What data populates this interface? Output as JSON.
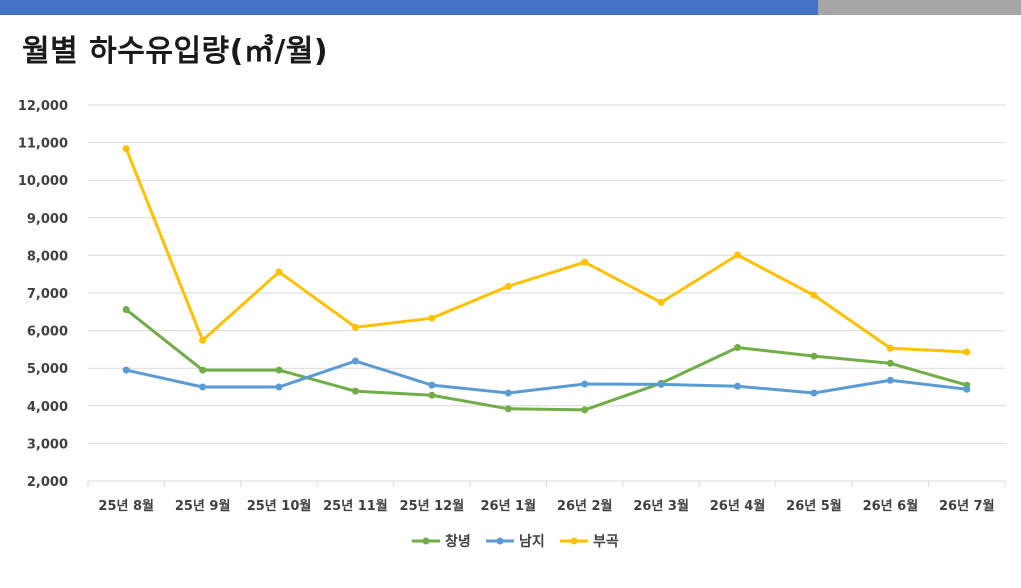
{
  "page": {
    "title": "월별 하수유입량(㎥/월)",
    "accent_colors": {
      "top_bar": "#4472c4",
      "top_bar_end": "#a6a6a6"
    }
  },
  "chart_data": {
    "type": "line",
    "title": "월별 하수유입량(㎥/월)",
    "xlabel": "",
    "ylabel": "",
    "categories": [
      "25년 8월",
      "25년 9월",
      "25년 10월",
      "25년 11월",
      "25년 12월",
      "26년 1월",
      "26년 2월",
      "26년 3월",
      "26년 4월",
      "26년 5월",
      "26년 6월",
      "26년 7월"
    ],
    "ylim": [
      2000,
      12000
    ],
    "yticks": [
      2000,
      3000,
      4000,
      5000,
      6000,
      7000,
      8000,
      9000,
      10000,
      11000,
      12000
    ],
    "ytick_labels": [
      "2,000",
      "3,000",
      "4,000",
      "5,000",
      "6,000",
      "7,000",
      "8,000",
      "9,000",
      "10,000",
      "11,000",
      "12,000"
    ],
    "grid": true,
    "legend_position": "bottom",
    "series": [
      {
        "name": "창녕",
        "color": "#70ad47",
        "values": [
          6560,
          4950,
          4950,
          4390,
          4280,
          3920,
          3890,
          4600,
          5550,
          5320,
          5130,
          4550
        ]
      },
      {
        "name": "남지",
        "color": "#5b9bd5",
        "values": [
          4950,
          4500,
          4500,
          5190,
          4550,
          4340,
          4580,
          4570,
          4520,
          4340,
          4680,
          4440
        ]
      },
      {
        "name": "부곡",
        "color": "#ffc000",
        "values": [
          10840,
          5740,
          7560,
          6090,
          6330,
          7180,
          7820,
          6750,
          8010,
          6940,
          5530,
          5430
        ]
      }
    ]
  }
}
